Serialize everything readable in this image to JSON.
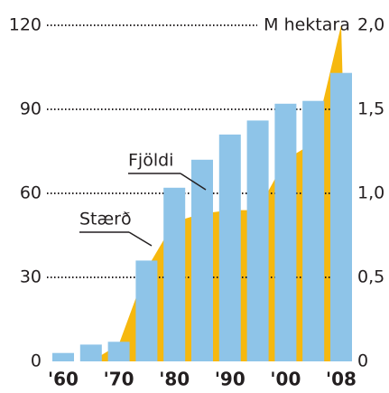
{
  "chart_data": {
    "type": "bar",
    "y_label": "M hektara",
    "categories": [
      "'60",
      null,
      "'70",
      null,
      "'80",
      null,
      "'90",
      null,
      "'00",
      null,
      "'08"
    ],
    "series": [
      {
        "name": "Fjöldi",
        "color": "#8ec4e8",
        "values": [
          3,
          6,
          7,
          36,
          62,
          72,
          81,
          86,
          92,
          93,
          103
        ]
      },
      {
        "name": "Stærð",
        "color": "#f6b80e",
        "axis": "y2",
        "type": "area",
        "values": [
          0,
          0,
          0.1,
          0.55,
          0.83,
          0.88,
          0.9,
          0.9,
          1.2,
          1.3,
          2.0
        ]
      }
    ],
    "ylim": [
      0,
      120
    ],
    "yticks": [
      0,
      30,
      60,
      90,
      120
    ],
    "y2lim": [
      0,
      2.0
    ],
    "y2ticks": [
      0,
      {
        "value": 0.5,
        "label": "0,5"
      },
      {
        "value": 1.0,
        "label": "1,0"
      },
      {
        "value": 1.5,
        "label": "1,5"
      },
      {
        "value": 2.0,
        "label": "2,0"
      }
    ],
    "grid": true
  }
}
